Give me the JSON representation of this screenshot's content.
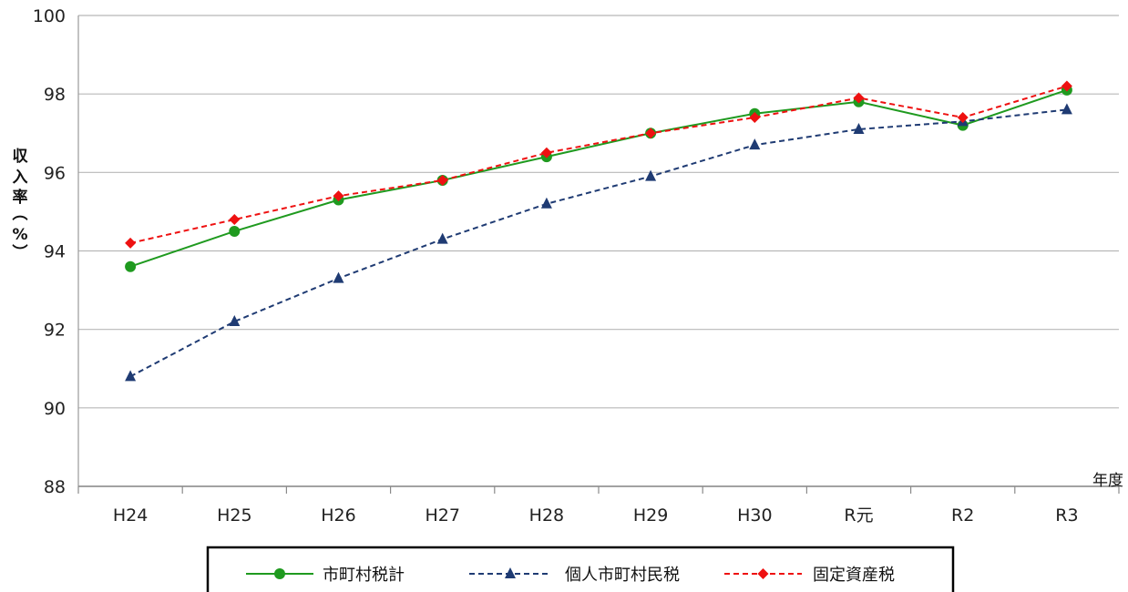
{
  "chart_data": {
    "type": "line",
    "categories": [
      "H24",
      "H25",
      "H26",
      "H27",
      "H28",
      "H29",
      "H30",
      "R元",
      "R2",
      "R3"
    ],
    "series": [
      {
        "name": "市町村税計",
        "values": [
          93.6,
          94.5,
          95.3,
          95.8,
          96.4,
          97.0,
          97.5,
          97.8,
          97.2,
          98.1
        ],
        "color": "#1f9a1f",
        "marker": "circle",
        "dash": "solid"
      },
      {
        "name": "個人市町村民税",
        "values": [
          90.8,
          92.2,
          93.3,
          94.3,
          95.2,
          95.9,
          96.7,
          97.1,
          97.3,
          97.6
        ],
        "color": "#1f3b73",
        "marker": "triangle",
        "dash": "dashed"
      },
      {
        "name": "固定資産税",
        "values": [
          94.2,
          94.8,
          95.4,
          95.8,
          96.5,
          97.0,
          97.4,
          97.9,
          97.4,
          98.2
        ],
        "color": "#ee1111",
        "marker": "diamond",
        "dash": "dashed"
      }
    ],
    "ylim": [
      88,
      100
    ],
    "yticks": [
      88,
      90,
      92,
      94,
      96,
      98,
      100
    ],
    "ylabel_chars": [
      "収",
      "入",
      "率",
      "︵",
      "%",
      "︶"
    ],
    "xlabel": "年度",
    "grid": true,
    "legend_position": "bottom"
  }
}
